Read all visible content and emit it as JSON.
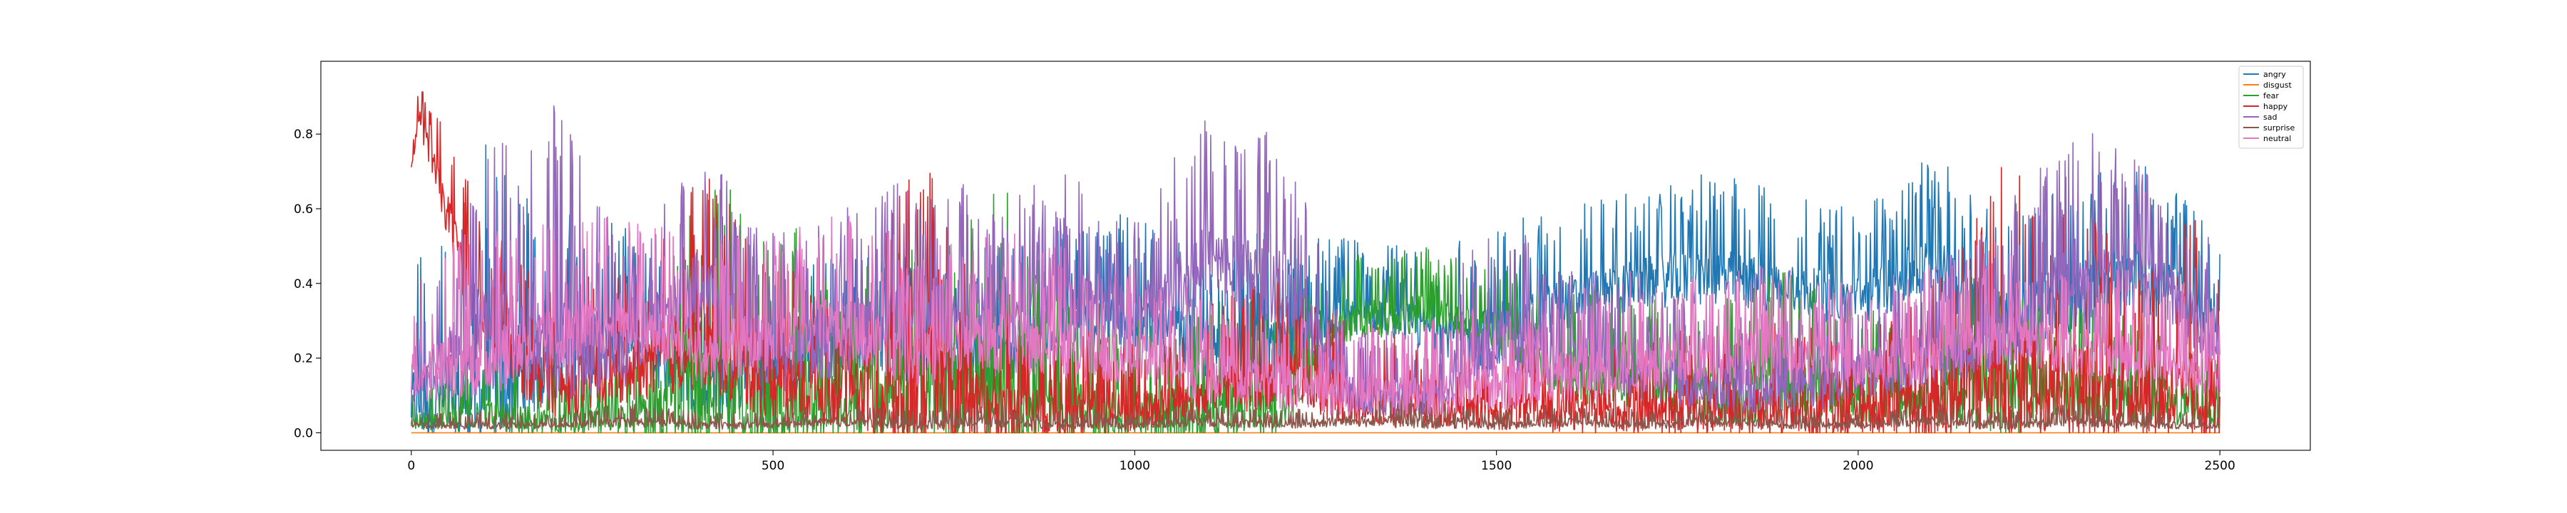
{
  "chart_data": {
    "type": "line",
    "title": "",
    "xlabel": "",
    "ylabel": "",
    "xlim": [
      -125,
      2625
    ],
    "ylim": [
      -0.047,
      0.995
    ],
    "xticks": [
      0,
      500,
      1000,
      1500,
      2000,
      2500
    ],
    "yticks": [
      0.0,
      0.2,
      0.4,
      0.6,
      0.8
    ],
    "xtick_labels": [
      "0",
      "500",
      "1000",
      "1500",
      "2000",
      "2500"
    ],
    "ytick_labels": [
      "0.0",
      "0.2",
      "0.4",
      "0.6",
      "0.8"
    ],
    "legend_position": "top-right",
    "n_points": 2500,
    "series": [
      {
        "name": "angry",
        "color": "#1f77b4",
        "x": [
          0,
          100,
          200,
          300,
          400,
          500,
          600,
          700,
          800,
          900,
          1000,
          1100,
          1200,
          1300,
          1400,
          1500,
          1600,
          1700,
          1800,
          1900,
          2000,
          2100,
          2200,
          2300,
          2400,
          2500
        ],
        "values": [
          0.08,
          0.12,
          0.2,
          0.25,
          0.12,
          0.15,
          0.25,
          0.2,
          0.2,
          0.28,
          0.3,
          0.22,
          0.2,
          0.32,
          0.28,
          0.25,
          0.35,
          0.4,
          0.42,
          0.38,
          0.35,
          0.45,
          0.3,
          0.35,
          0.4,
          0.32
        ],
        "max": [
          0.45,
          0.8,
          0.6,
          0.55,
          0.4,
          0.45,
          0.5,
          0.45,
          0.5,
          0.55,
          0.6,
          0.5,
          0.55,
          0.52,
          0.5,
          0.55,
          0.62,
          0.65,
          0.7,
          0.65,
          0.6,
          0.75,
          0.6,
          0.7,
          0.72,
          0.58
        ]
      },
      {
        "name": "disgust",
        "color": "#ff7f0e",
        "x": [
          0,
          2500
        ],
        "values": [
          0.0,
          0.0
        ],
        "max": [
          0.0,
          0.0
        ]
      },
      {
        "name": "fear",
        "color": "#2ca02c",
        "x": [
          0,
          100,
          200,
          300,
          400,
          500,
          600,
          700,
          800,
          900,
          1000,
          1100,
          1200,
          1300,
          1400,
          1500,
          1600,
          1700,
          1800,
          1900,
          2000,
          2100,
          2200,
          2300,
          2400,
          2500
        ],
        "values": [
          0.03,
          0.04,
          0.03,
          0.03,
          0.1,
          0.08,
          0.06,
          0.08,
          0.1,
          0.06,
          0.04,
          0.05,
          0.08,
          0.3,
          0.32,
          0.25,
          0.15,
          0.12,
          0.1,
          0.12,
          0.1,
          0.08,
          0.1,
          0.1,
          0.08,
          0.05
        ],
        "max": [
          0.1,
          0.2,
          0.15,
          0.2,
          0.7,
          0.6,
          0.45,
          0.5,
          0.72,
          0.4,
          0.3,
          0.35,
          0.4,
          0.5,
          0.5,
          0.45,
          0.4,
          0.35,
          0.4,
          0.45,
          0.35,
          0.3,
          0.55,
          0.35,
          0.3,
          0.2
        ]
      },
      {
        "name": "happy",
        "color": "#d62728",
        "x": [
          0,
          10,
          100,
          200,
          300,
          400,
          500,
          600,
          700,
          800,
          900,
          1000,
          1100,
          1200,
          1300,
          1400,
          1500,
          1600,
          1700,
          1800,
          1900,
          2000,
          2100,
          2200,
          2300,
          2400,
          2500
        ],
        "values": [
          0.7,
          0.85,
          0.25,
          0.12,
          0.15,
          0.25,
          0.12,
          0.1,
          0.08,
          0.06,
          0.05,
          0.05,
          0.1,
          0.15,
          0.08,
          0.06,
          0.05,
          0.06,
          0.05,
          0.06,
          0.05,
          0.05,
          0.06,
          0.15,
          0.12,
          0.1,
          0.08
        ],
        "max": [
          0.72,
          0.95,
          0.6,
          0.4,
          0.45,
          0.73,
          0.45,
          0.4,
          0.77,
          0.35,
          0.3,
          0.25,
          0.35,
          0.45,
          0.3,
          0.25,
          0.2,
          0.3,
          0.25,
          0.3,
          0.3,
          0.25,
          0.4,
          0.72,
          0.6,
          0.5,
          0.62
        ]
      },
      {
        "name": "sad",
        "color": "#9467bd",
        "x": [
          0,
          100,
          200,
          300,
          400,
          500,
          600,
          700,
          800,
          900,
          1000,
          1100,
          1200,
          1300,
          1400,
          1500,
          1600,
          1700,
          1800,
          1900,
          2000,
          2100,
          2200,
          2300,
          2400,
          2500
        ],
        "values": [
          0.1,
          0.3,
          0.25,
          0.2,
          0.4,
          0.2,
          0.25,
          0.35,
          0.3,
          0.35,
          0.3,
          0.45,
          0.4,
          0.1,
          0.08,
          0.25,
          0.2,
          0.15,
          0.12,
          0.1,
          0.15,
          0.2,
          0.25,
          0.4,
          0.45,
          0.2
        ],
        "max": [
          0.2,
          0.75,
          0.88,
          0.5,
          0.75,
          0.55,
          0.6,
          0.7,
          0.65,
          0.7,
          0.6,
          0.85,
          0.8,
          0.3,
          0.25,
          0.65,
          0.45,
          0.4,
          0.35,
          0.3,
          0.4,
          0.45,
          0.6,
          0.85,
          0.72,
          0.5
        ]
      },
      {
        "name": "surprise",
        "color": "#8c564b",
        "x": [
          0,
          100,
          200,
          300,
          400,
          500,
          600,
          700,
          800,
          900,
          1000,
          1100,
          1200,
          1300,
          1400,
          1500,
          1600,
          1700,
          1800,
          1900,
          2000,
          2100,
          2200,
          2300,
          2400,
          2500
        ],
        "values": [
          0.02,
          0.02,
          0.02,
          0.03,
          0.02,
          0.02,
          0.03,
          0.02,
          0.03,
          0.02,
          0.02,
          0.03,
          0.02,
          0.03,
          0.03,
          0.02,
          0.03,
          0.02,
          0.03,
          0.02,
          0.02,
          0.03,
          0.02,
          0.03,
          0.02,
          0.02
        ],
        "max": [
          0.05,
          0.06,
          0.05,
          0.08,
          0.06,
          0.05,
          0.08,
          0.06,
          0.08,
          0.06,
          0.05,
          0.08,
          0.06,
          0.08,
          0.1,
          0.06,
          0.08,
          0.06,
          0.08,
          0.06,
          0.05,
          0.08,
          0.06,
          0.08,
          0.06,
          0.05
        ]
      },
      {
        "name": "neutral",
        "color": "#e377c2",
        "x": [
          0,
          100,
          200,
          300,
          400,
          500,
          600,
          700,
          800,
          900,
          1000,
          1100,
          1200,
          1300,
          1400,
          1500,
          1600,
          1700,
          1800,
          1900,
          2000,
          2100,
          2200,
          2300,
          2400,
          2500
        ],
        "values": [
          0.15,
          0.2,
          0.25,
          0.3,
          0.2,
          0.25,
          0.28,
          0.2,
          0.25,
          0.22,
          0.2,
          0.15,
          0.12,
          0.1,
          0.1,
          0.12,
          0.15,
          0.18,
          0.2,
          0.2,
          0.18,
          0.2,
          0.25,
          0.22,
          0.2,
          0.15
        ],
        "max": [
          0.4,
          0.6,
          0.55,
          0.6,
          0.5,
          0.55,
          0.6,
          0.5,
          0.55,
          0.5,
          0.45,
          0.4,
          0.35,
          0.3,
          0.3,
          0.35,
          0.4,
          0.45,
          0.45,
          0.45,
          0.4,
          0.45,
          0.5,
          0.45,
          0.45,
          0.35
        ]
      }
    ]
  }
}
